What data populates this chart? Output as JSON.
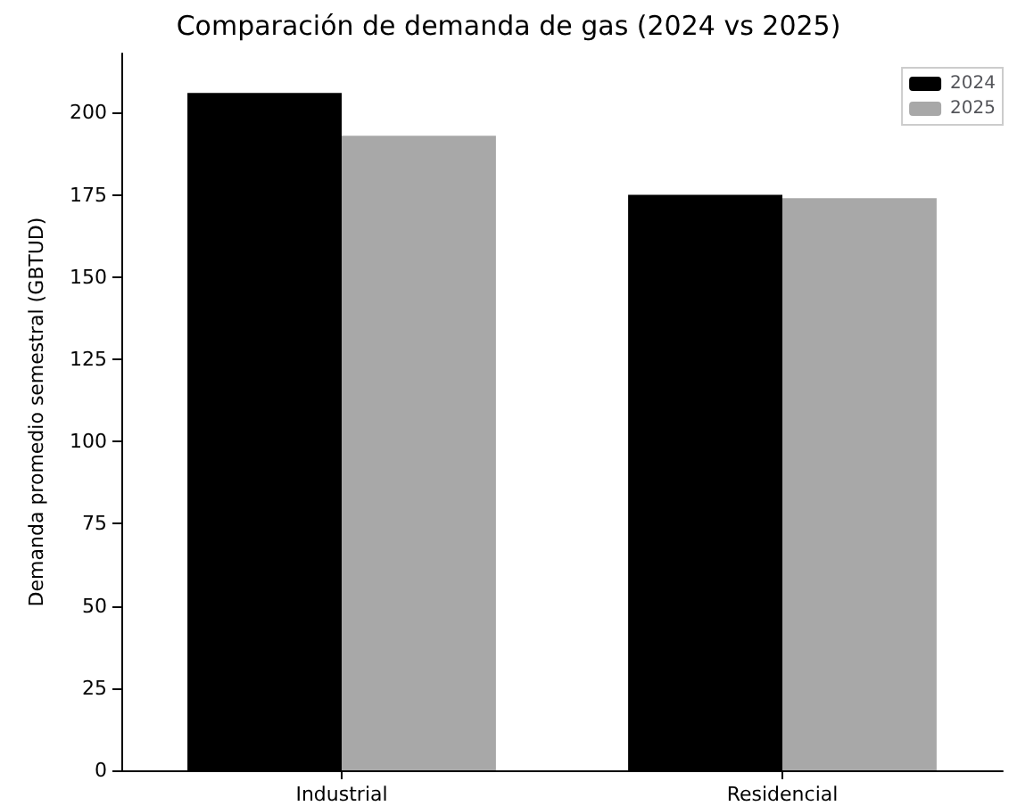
{
  "chart_data": {
    "type": "bar",
    "title": "Comparación de demanda de gas (2024 vs 2025)",
    "ylabel": "Demanda promedio semestral (GBTUD)",
    "categories": [
      "Industrial",
      "Residencial"
    ],
    "series": [
      {
        "name": "2024",
        "color": "#000000",
        "values": [
          206,
          175
        ]
      },
      {
        "name": "2025",
        "color": "#a8a8a8",
        "values": [
          193,
          174
        ]
      }
    ],
    "ylim": [
      0,
      218
    ],
    "yticks": [
      0,
      25,
      50,
      75,
      100,
      125,
      150,
      175,
      200
    ],
    "grid": false,
    "legend": "top right"
  }
}
